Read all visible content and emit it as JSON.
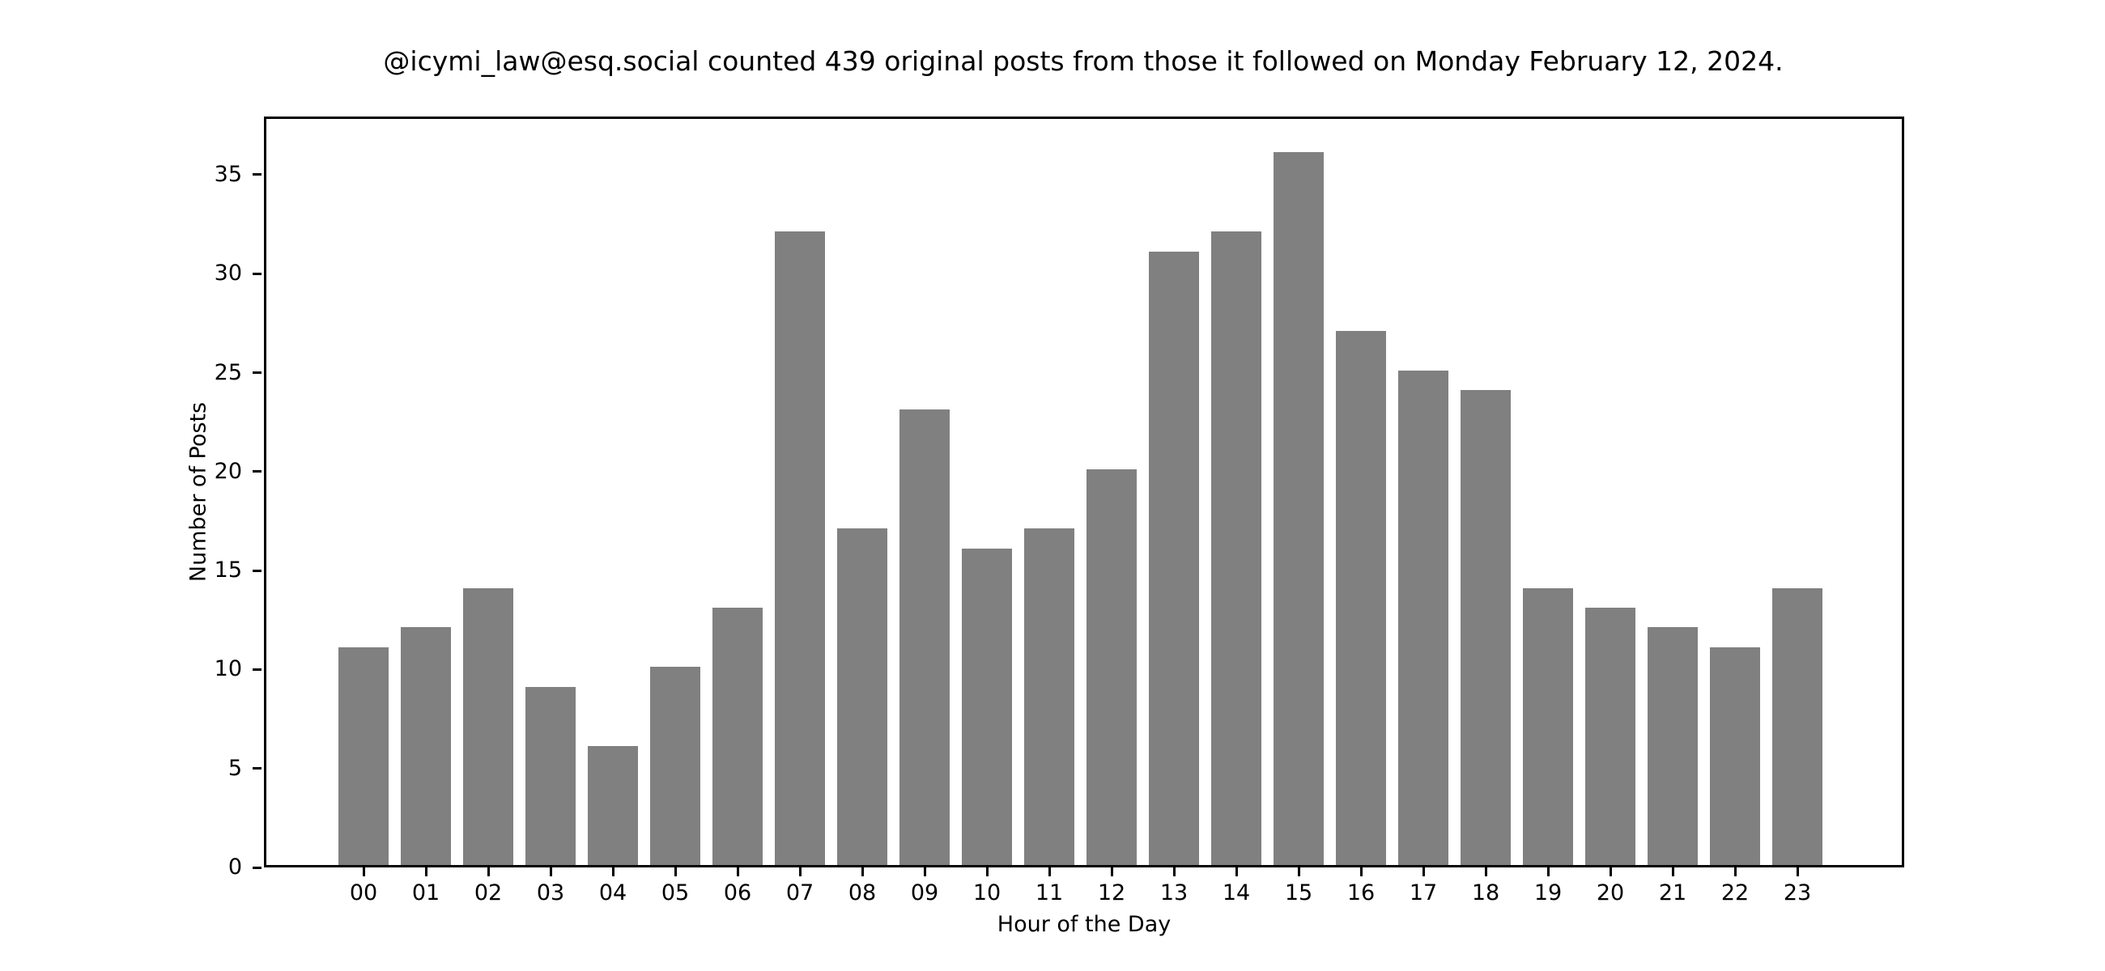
{
  "chart_data": {
    "type": "bar",
    "title": "@icymi_law@esq.social counted 439 original posts from those it followed on Monday February 12, 2024.",
    "xlabel": "Hour of the Day",
    "ylabel": "Number of Posts",
    "categories": [
      "00",
      "01",
      "02",
      "03",
      "04",
      "05",
      "06",
      "07",
      "08",
      "09",
      "10",
      "11",
      "12",
      "13",
      "14",
      "15",
      "16",
      "17",
      "18",
      "19",
      "20",
      "21",
      "22",
      "23"
    ],
    "values": [
      11,
      12,
      14,
      9,
      6,
      10,
      13,
      32,
      17,
      23,
      16,
      17,
      20,
      31,
      32,
      36,
      27,
      25,
      24,
      14,
      13,
      12,
      11,
      14
    ],
    "yticks": [
      "0",
      "5",
      "10",
      "15",
      "20",
      "25",
      "30",
      "35"
    ],
    "ylim": [
      0,
      37.8
    ],
    "grid": false,
    "legend": null,
    "bar_color": "#808080"
  }
}
